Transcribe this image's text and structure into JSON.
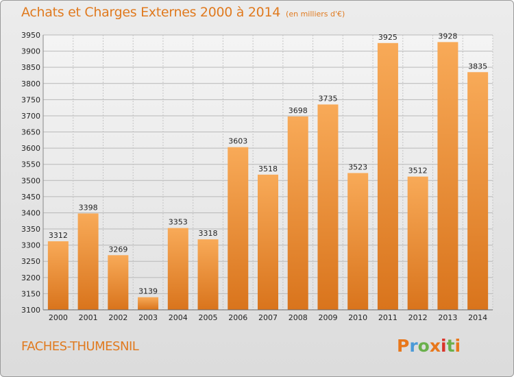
{
  "header": {
    "title": "Achats et Charges Externes 2000 à 2014",
    "unit": "(en milliers d'€)"
  },
  "footer": {
    "city": "FACHES-THUMESNIL",
    "logo": "Proxiti"
  },
  "colors": {
    "title": "#e07a1f",
    "bar_light": "#f8aa58",
    "bar_dark": "#d9741c",
    "logo_letters": [
      "#e8771b",
      "#4a9ad8",
      "#6ab04c",
      "#e8771b",
      "#d9342b",
      "#6ab04c",
      "#e8771b"
    ]
  },
  "chart_data": {
    "type": "bar",
    "categories": [
      "2000",
      "2001",
      "2002",
      "2003",
      "2004",
      "2005",
      "2006",
      "2007",
      "2008",
      "2009",
      "2010",
      "2011",
      "2012",
      "2013",
      "2014"
    ],
    "values": [
      3312,
      3398,
      3269,
      3139,
      3353,
      3318,
      3603,
      3518,
      3698,
      3735,
      3523,
      3925,
      3512,
      3928,
      3835
    ],
    "title": "Achats et Charges Externes 2000 à 2014",
    "ylim": [
      3100,
      3950
    ],
    "yticks": [
      3100,
      3150,
      3200,
      3250,
      3300,
      3350,
      3400,
      3450,
      3500,
      3550,
      3600,
      3650,
      3700,
      3750,
      3800,
      3850,
      3900,
      3950
    ],
    "grid": true,
    "data_labels": true
  }
}
